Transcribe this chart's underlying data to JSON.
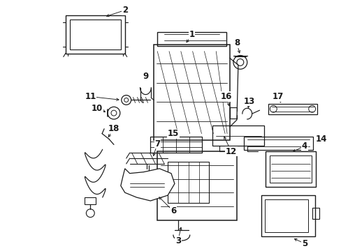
{
  "background_color": "#ffffff",
  "fig_width": 4.89,
  "fig_height": 3.6,
  "dpi": 100,
  "line_color": "#1a1a1a",
  "label_fontsize": 8.5,
  "label_fontweight": "bold"
}
